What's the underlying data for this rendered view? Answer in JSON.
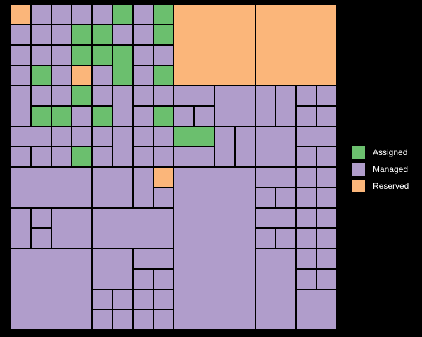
{
  "chart_data": {
    "type": "treemap",
    "legend_position": "right",
    "categories": [
      {
        "name": "Assigned",
        "color": "#6bbf6e"
      },
      {
        "name": "Managed",
        "color": "#b09dcb"
      },
      {
        "name": "Reserved",
        "color": "#fbb67a"
      }
    ],
    "unit_grid": {
      "cols": 16,
      "rows": 16
    },
    "cells": [
      {
        "c": 0,
        "r": 0,
        "w": 1,
        "h": 1,
        "s": "Reserved"
      },
      {
        "c": 1,
        "r": 0,
        "w": 1,
        "h": 1,
        "s": "Managed"
      },
      {
        "c": 2,
        "r": 0,
        "w": 1,
        "h": 1,
        "s": "Managed"
      },
      {
        "c": 3,
        "r": 0,
        "w": 1,
        "h": 1,
        "s": "Managed"
      },
      {
        "c": 4,
        "r": 0,
        "w": 1,
        "h": 1,
        "s": "Managed"
      },
      {
        "c": 5,
        "r": 0,
        "w": 1,
        "h": 1,
        "s": "Assigned"
      },
      {
        "c": 6,
        "r": 0,
        "w": 1,
        "h": 1,
        "s": "Managed"
      },
      {
        "c": 7,
        "r": 0,
        "w": 1,
        "h": 1,
        "s": "Assigned"
      },
      {
        "c": 8,
        "r": 0,
        "w": 4,
        "h": 4,
        "s": "Reserved"
      },
      {
        "c": 12,
        "r": 0,
        "w": 4,
        "h": 4,
        "s": "Reserved"
      },
      {
        "c": 0,
        "r": 1,
        "w": 1,
        "h": 1,
        "s": "Managed"
      },
      {
        "c": 1,
        "r": 1,
        "w": 1,
        "h": 1,
        "s": "Managed"
      },
      {
        "c": 2,
        "r": 1,
        "w": 1,
        "h": 1,
        "s": "Managed"
      },
      {
        "c": 3,
        "r": 1,
        "w": 1,
        "h": 1,
        "s": "Assigned"
      },
      {
        "c": 4,
        "r": 1,
        "w": 1,
        "h": 1,
        "s": "Assigned"
      },
      {
        "c": 5,
        "r": 1,
        "w": 1,
        "h": 1,
        "s": "Managed"
      },
      {
        "c": 6,
        "r": 1,
        "w": 1,
        "h": 1,
        "s": "Managed"
      },
      {
        "c": 7,
        "r": 1,
        "w": 1,
        "h": 1,
        "s": "Assigned"
      },
      {
        "c": 0,
        "r": 2,
        "w": 1,
        "h": 1,
        "s": "Managed"
      },
      {
        "c": 1,
        "r": 2,
        "w": 1,
        "h": 1,
        "s": "Managed"
      },
      {
        "c": 2,
        "r": 2,
        "w": 1,
        "h": 1,
        "s": "Managed"
      },
      {
        "c": 3,
        "r": 2,
        "w": 1,
        "h": 1,
        "s": "Assigned"
      },
      {
        "c": 4,
        "r": 2,
        "w": 1,
        "h": 1,
        "s": "Assigned"
      },
      {
        "c": 5,
        "r": 2,
        "w": 1,
        "h": 2,
        "s": "Assigned"
      },
      {
        "c": 6,
        "r": 2,
        "w": 1,
        "h": 1,
        "s": "Managed"
      },
      {
        "c": 7,
        "r": 2,
        "w": 1,
        "h": 1,
        "s": "Managed"
      },
      {
        "c": 0,
        "r": 3,
        "w": 1,
        "h": 1,
        "s": "Managed"
      },
      {
        "c": 1,
        "r": 3,
        "w": 1,
        "h": 1,
        "s": "Assigned"
      },
      {
        "c": 2,
        "r": 3,
        "w": 1,
        "h": 1,
        "s": "Managed"
      },
      {
        "c": 3,
        "r": 3,
        "w": 1,
        "h": 1,
        "s": "Reserved"
      },
      {
        "c": 4,
        "r": 3,
        "w": 1,
        "h": 1,
        "s": "Managed"
      },
      {
        "c": 6,
        "r": 3,
        "w": 1,
        "h": 1,
        "s": "Managed"
      },
      {
        "c": 7,
        "r": 3,
        "w": 1,
        "h": 1,
        "s": "Assigned"
      },
      {
        "c": 0,
        "r": 4,
        "w": 1,
        "h": 2,
        "s": "Managed"
      },
      {
        "c": 1,
        "r": 4,
        "w": 1,
        "h": 1,
        "s": "Managed"
      },
      {
        "c": 2,
        "r": 4,
        "w": 1,
        "h": 1,
        "s": "Managed"
      },
      {
        "c": 3,
        "r": 4,
        "w": 1,
        "h": 1,
        "s": "Assigned"
      },
      {
        "c": 4,
        "r": 4,
        "w": 1,
        "h": 1,
        "s": "Managed"
      },
      {
        "c": 5,
        "r": 4,
        "w": 1,
        "h": 2,
        "s": "Managed"
      },
      {
        "c": 6,
        "r": 4,
        "w": 1,
        "h": 1,
        "s": "Managed"
      },
      {
        "c": 7,
        "r": 4,
        "w": 1,
        "h": 1,
        "s": "Managed"
      },
      {
        "c": 8,
        "r": 4,
        "w": 2,
        "h": 1,
        "s": "Managed"
      },
      {
        "c": 10,
        "r": 4,
        "w": 2,
        "h": 2,
        "s": "Managed"
      },
      {
        "c": 12,
        "r": 4,
        "w": 1,
        "h": 2,
        "s": "Managed"
      },
      {
        "c": 13,
        "r": 4,
        "w": 1,
        "h": 2,
        "s": "Managed"
      },
      {
        "c": 14,
        "r": 4,
        "w": 1,
        "h": 1,
        "s": "Managed"
      },
      {
        "c": 15,
        "r": 4,
        "w": 1,
        "h": 1,
        "s": "Managed"
      },
      {
        "c": 1,
        "r": 5,
        "w": 1,
        "h": 1,
        "s": "Assigned"
      },
      {
        "c": 2,
        "r": 5,
        "w": 1,
        "h": 1,
        "s": "Assigned"
      },
      {
        "c": 3,
        "r": 5,
        "w": 1,
        "h": 1,
        "s": "Managed"
      },
      {
        "c": 4,
        "r": 5,
        "w": 1,
        "h": 1,
        "s": "Assigned"
      },
      {
        "c": 6,
        "r": 5,
        "w": 1,
        "h": 1,
        "s": "Managed"
      },
      {
        "c": 7,
        "r": 5,
        "w": 1,
        "h": 1,
        "s": "Assigned"
      },
      {
        "c": 8,
        "r": 5,
        "w": 1,
        "h": 1,
        "s": "Managed"
      },
      {
        "c": 9,
        "r": 5,
        "w": 1,
        "h": 1,
        "s": "Managed"
      },
      {
        "c": 14,
        "r": 5,
        "w": 1,
        "h": 1,
        "s": "Managed"
      },
      {
        "c": 15,
        "r": 5,
        "w": 1,
        "h": 1,
        "s": "Managed"
      },
      {
        "c": 0,
        "r": 6,
        "w": 2,
        "h": 1,
        "s": "Managed"
      },
      {
        "c": 2,
        "r": 6,
        "w": 1,
        "h": 1,
        "s": "Managed"
      },
      {
        "c": 3,
        "r": 6,
        "w": 1,
        "h": 1,
        "s": "Managed"
      },
      {
        "c": 4,
        "r": 6,
        "w": 1,
        "h": 1,
        "s": "Managed"
      },
      {
        "c": 5,
        "r": 6,
        "w": 1,
        "h": 2,
        "s": "Managed"
      },
      {
        "c": 6,
        "r": 6,
        "w": 1,
        "h": 1,
        "s": "Managed"
      },
      {
        "c": 7,
        "r": 6,
        "w": 1,
        "h": 1,
        "s": "Managed"
      },
      {
        "c": 8,
        "r": 6,
        "w": 2,
        "h": 1,
        "s": "Assigned"
      },
      {
        "c": 10,
        "r": 6,
        "w": 1,
        "h": 2,
        "s": "Managed"
      },
      {
        "c": 11,
        "r": 6,
        "w": 1,
        "h": 2,
        "s": "Managed"
      },
      {
        "c": 12,
        "r": 6,
        "w": 2,
        "h": 2,
        "s": "Managed"
      },
      {
        "c": 14,
        "r": 6,
        "w": 2,
        "h": 1,
        "s": "Managed"
      },
      {
        "c": 0,
        "r": 7,
        "w": 1,
        "h": 1,
        "s": "Managed"
      },
      {
        "c": 1,
        "r": 7,
        "w": 1,
        "h": 1,
        "s": "Managed"
      },
      {
        "c": 2,
        "r": 7,
        "w": 1,
        "h": 1,
        "s": "Managed"
      },
      {
        "c": 3,
        "r": 7,
        "w": 1,
        "h": 1,
        "s": "Assigned"
      },
      {
        "c": 4,
        "r": 7,
        "w": 1,
        "h": 1,
        "s": "Managed"
      },
      {
        "c": 6,
        "r": 7,
        "w": 1,
        "h": 1,
        "s": "Managed"
      },
      {
        "c": 7,
        "r": 7,
        "w": 1,
        "h": 1,
        "s": "Managed"
      },
      {
        "c": 8,
        "r": 7,
        "w": 2,
        "h": 1,
        "s": "Managed"
      },
      {
        "c": 14,
        "r": 7,
        "w": 1,
        "h": 1,
        "s": "Managed"
      },
      {
        "c": 15,
        "r": 7,
        "w": 1,
        "h": 1,
        "s": "Managed"
      },
      {
        "c": 0,
        "r": 8,
        "w": 4,
        "h": 2,
        "s": "Managed"
      },
      {
        "c": 4,
        "r": 8,
        "w": 2,
        "h": 2,
        "s": "Managed"
      },
      {
        "c": 6,
        "r": 8,
        "w": 1,
        "h": 2,
        "s": "Managed"
      },
      {
        "c": 7,
        "r": 8,
        "w": 1,
        "h": 1,
        "s": "Reserved"
      },
      {
        "c": 8,
        "r": 8,
        "w": 4,
        "h": 8,
        "s": "Managed"
      },
      {
        "c": 12,
        "r": 8,
        "w": 2,
        "h": 1,
        "s": "Managed"
      },
      {
        "c": 14,
        "r": 8,
        "w": 1,
        "h": 1,
        "s": "Managed"
      },
      {
        "c": 15,
        "r": 8,
        "w": 1,
        "h": 1,
        "s": "Managed"
      },
      {
        "c": 7,
        "r": 9,
        "w": 1,
        "h": 1,
        "s": "Managed"
      },
      {
        "c": 12,
        "r": 9,
        "w": 1,
        "h": 1,
        "s": "Managed"
      },
      {
        "c": 13,
        "r": 9,
        "w": 1,
        "h": 1,
        "s": "Managed"
      },
      {
        "c": 14,
        "r": 9,
        "w": 1,
        "h": 1,
        "s": "Managed"
      },
      {
        "c": 15,
        "r": 9,
        "w": 1,
        "h": 1,
        "s": "Managed"
      },
      {
        "c": 0,
        "r": 10,
        "w": 1,
        "h": 2,
        "s": "Managed"
      },
      {
        "c": 1,
        "r": 10,
        "w": 1,
        "h": 1,
        "s": "Managed"
      },
      {
        "c": 2,
        "r": 10,
        "w": 2,
        "h": 2,
        "s": "Managed"
      },
      {
        "c": 4,
        "r": 10,
        "w": 4,
        "h": 2,
        "s": "Managed"
      },
      {
        "c": 12,
        "r": 10,
        "w": 2,
        "h": 1,
        "s": "Managed"
      },
      {
        "c": 14,
        "r": 10,
        "w": 1,
        "h": 1,
        "s": "Managed"
      },
      {
        "c": 15,
        "r": 10,
        "w": 1,
        "h": 1,
        "s": "Managed"
      },
      {
        "c": 1,
        "r": 11,
        "w": 1,
        "h": 1,
        "s": "Managed"
      },
      {
        "c": 12,
        "r": 11,
        "w": 1,
        "h": 1,
        "s": "Managed"
      },
      {
        "c": 13,
        "r": 11,
        "w": 1,
        "h": 1,
        "s": "Managed"
      },
      {
        "c": 14,
        "r": 11,
        "w": 1,
        "h": 1,
        "s": "Managed"
      },
      {
        "c": 15,
        "r": 11,
        "w": 1,
        "h": 1,
        "s": "Managed"
      },
      {
        "c": 0,
        "r": 12,
        "w": 4,
        "h": 4,
        "s": "Managed"
      },
      {
        "c": 4,
        "r": 12,
        "w": 2,
        "h": 2,
        "s": "Managed"
      },
      {
        "c": 6,
        "r": 12,
        "w": 2,
        "h": 1,
        "s": "Managed"
      },
      {
        "c": 12,
        "r": 12,
        "w": 2,
        "h": 4,
        "s": "Managed"
      },
      {
        "c": 14,
        "r": 12,
        "w": 1,
        "h": 1,
        "s": "Managed"
      },
      {
        "c": 15,
        "r": 12,
        "w": 1,
        "h": 1,
        "s": "Managed"
      },
      {
        "c": 6,
        "r": 13,
        "w": 1,
        "h": 1,
        "s": "Managed"
      },
      {
        "c": 7,
        "r": 13,
        "w": 1,
        "h": 1,
        "s": "Managed"
      },
      {
        "c": 14,
        "r": 13,
        "w": 1,
        "h": 1,
        "s": "Managed"
      },
      {
        "c": 15,
        "r": 13,
        "w": 1,
        "h": 1,
        "s": "Managed"
      },
      {
        "c": 4,
        "r": 14,
        "w": 1,
        "h": 1,
        "s": "Managed"
      },
      {
        "c": 5,
        "r": 14,
        "w": 1,
        "h": 1,
        "s": "Managed"
      },
      {
        "c": 6,
        "r": 14,
        "w": 1,
        "h": 1,
        "s": "Managed"
      },
      {
        "c": 7,
        "r": 14,
        "w": 1,
        "h": 1,
        "s": "Managed"
      },
      {
        "c": 14,
        "r": 14,
        "w": 2,
        "h": 2,
        "s": "Managed"
      },
      {
        "c": 4,
        "r": 15,
        "w": 1,
        "h": 1,
        "s": "Managed"
      },
      {
        "c": 5,
        "r": 15,
        "w": 1,
        "h": 1,
        "s": "Managed"
      },
      {
        "c": 6,
        "r": 15,
        "w": 1,
        "h": 1,
        "s": "Managed"
      },
      {
        "c": 7,
        "r": 15,
        "w": 1,
        "h": 1,
        "s": "Managed"
      }
    ]
  }
}
